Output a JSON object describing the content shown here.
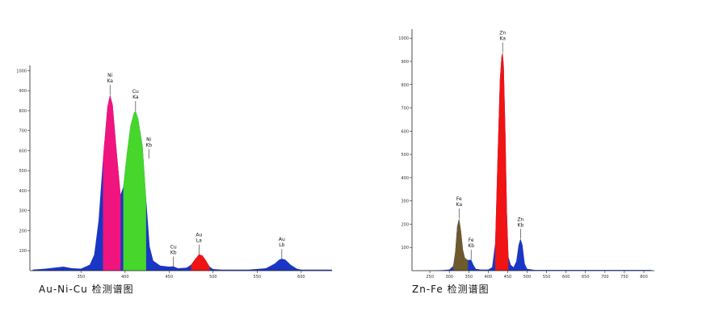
{
  "chart_data": [
    {
      "type": "spectrum",
      "title": "Au-Ni-Cu 检测谱图",
      "xlim": [
        292,
        635
      ],
      "ylim": [
        0,
        1010
      ],
      "xticks": [
        350,
        400,
        450,
        500,
        550,
        600
      ],
      "yticks": [
        100,
        200,
        300,
        400,
        500,
        600,
        700,
        800,
        900,
        1000
      ],
      "series": [
        {
          "color": "#1a36c4",
          "x": [
            295,
            310,
            320,
            330,
            340,
            350,
            360,
            365,
            370,
            375,
            380,
            383,
            386,
            390,
            395,
            398,
            402,
            406,
            410,
            412,
            415,
            420,
            424,
            428,
            432,
            440,
            450,
            455,
            460,
            470,
            475,
            480,
            484,
            488,
            492,
            496,
            500,
            510,
            540,
            560,
            570,
            575,
            578,
            582,
            588,
            595,
            600,
            620,
            635
          ],
          "values": [
            5,
            10,
            15,
            20,
            12,
            10,
            30,
            80,
            250,
            560,
            820,
            880,
            830,
            620,
            380,
            420,
            580,
            720,
            790,
            800,
            760,
            620,
            360,
            120,
            50,
            25,
            20,
            22,
            12,
            15,
            30,
            60,
            82,
            75,
            50,
            20,
            8,
            5,
            5,
            12,
            35,
            55,
            60,
            55,
            30,
            10,
            5,
            5,
            5
          ]
        },
        {
          "color": "#f0147f",
          "x": [
            375,
            380,
            383,
            386,
            390,
            395
          ],
          "values": [
            560,
            820,
            880,
            830,
            620,
            380
          ]
        },
        {
          "color": "#46d62c",
          "x": [
            398,
            402,
            406,
            410,
            412,
            415,
            420,
            424
          ],
          "values": [
            420,
            580,
            720,
            790,
            800,
            760,
            620,
            360
          ]
        },
        {
          "color": "#f01414",
          "x": [
            475,
            480,
            484,
            488,
            492,
            496
          ],
          "values": [
            30,
            60,
            82,
            75,
            50,
            20
          ]
        }
      ],
      "annotations": [
        {
          "lines": [
            "Ni",
            "Ka"
          ],
          "x": 383,
          "y": 880
        },
        {
          "lines": [
            "Cu",
            "Ka"
          ],
          "x": 412,
          "y": 800
        },
        {
          "lines": [
            "Ni",
            "Kb"
          ],
          "x": 427,
          "y": 560
        },
        {
          "lines": [
            "Cu",
            "Kb"
          ],
          "x": 455,
          "y": 22
        },
        {
          "lines": [
            "Au",
            "La"
          ],
          "x": 484,
          "y": 82
        },
        {
          "lines": [
            "Au",
            "Lb"
          ],
          "x": 578,
          "y": 60
        }
      ]
    },
    {
      "type": "spectrum",
      "title": "Zn-Fe 检测谱图",
      "xlim": [
        204,
        827
      ],
      "ylim": [
        0,
        1025
      ],
      "xticks": [
        250,
        300,
        350,
        400,
        450,
        500,
        550,
        600,
        650,
        700,
        750,
        800
      ],
      "yticks": [
        100,
        200,
        300,
        400,
        500,
        600,
        700,
        800,
        900,
        1000
      ],
      "series": [
        {
          "color": "#1a36c4",
          "x": [
            205,
            280,
            300,
            310,
            315,
            320,
            325,
            330,
            335,
            340,
            348,
            356,
            362,
            368,
            380,
            400,
            410,
            418,
            424,
            430,
            434,
            437,
            440,
            444,
            448,
            452,
            458,
            465,
            472,
            478,
            483,
            488,
            494,
            500,
            520,
            600,
            820
          ],
          "values": [
            0,
            2,
            5,
            20,
            80,
            190,
            225,
            170,
            90,
            55,
            45,
            48,
            25,
            8,
            5,
            5,
            15,
            120,
            480,
            820,
            920,
            940,
            880,
            600,
            250,
            60,
            25,
            15,
            40,
            110,
            138,
            110,
            30,
            8,
            3,
            3,
            3
          ]
        },
        {
          "color": "#6e5a2c",
          "x": [
            310,
            315,
            320,
            325,
            330,
            335,
            340,
            348
          ],
          "values": [
            20,
            80,
            190,
            225,
            170,
            90,
            55,
            45
          ]
        },
        {
          "color": "#f01414",
          "x": [
            418,
            424,
            430,
            434,
            437,
            440,
            444,
            448,
            452
          ],
          "values": [
            120,
            480,
            820,
            920,
            940,
            880,
            600,
            250,
            60
          ]
        }
      ],
      "annotations": [
        {
          "lines": [
            "Fe",
            "Ka"
          ],
          "x": 325,
          "y": 225
        },
        {
          "lines": [
            "Fe",
            "Kb"
          ],
          "x": 356,
          "y": 48
        },
        {
          "lines": [
            "Zn",
            "Ka"
          ],
          "x": 437,
          "y": 940
        },
        {
          "lines": [
            "Zn",
            "Kb"
          ],
          "x": 483,
          "y": 138
        }
      ]
    }
  ]
}
